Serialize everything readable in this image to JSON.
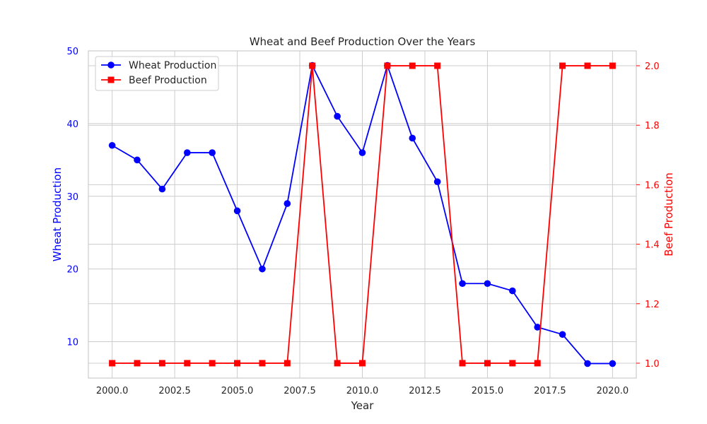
{
  "chart_data": {
    "type": "line",
    "title": "Wheat and Beef Production Over the Years",
    "xlabel": "Year",
    "x": [
      2000,
      2001,
      2002,
      2003,
      2004,
      2005,
      2006,
      2007,
      2008,
      2009,
      2010,
      2011,
      2012,
      2013,
      2014,
      2015,
      2016,
      2017,
      2018,
      2019,
      2020
    ],
    "x_ticks": [
      "2000.0",
      "2002.5",
      "2005.0",
      "2007.5",
      "2010.0",
      "2012.5",
      "2015.0",
      "2017.5",
      "2020.0"
    ],
    "xlim": [
      1999.05,
      2020.95
    ],
    "grid": true,
    "legend_position": "upper-left",
    "series": [
      {
        "name": "Wheat Production",
        "axis": "left",
        "color": "#0000ff",
        "marker": "circle",
        "values": [
          37,
          35,
          31,
          36,
          36,
          28,
          20,
          29,
          48,
          41,
          36,
          48,
          38,
          32,
          18,
          18,
          17,
          12,
          11,
          7,
          7
        ]
      },
      {
        "name": "Beef Production",
        "axis": "right",
        "color": "#ff0000",
        "marker": "square",
        "values": [
          1,
          1,
          1,
          1,
          1,
          1,
          1,
          1,
          2,
          1,
          1,
          2,
          2,
          2,
          1,
          1,
          1,
          1,
          2,
          2,
          2
        ]
      }
    ],
    "y_left": {
      "label": "Wheat Production",
      "color": "#0000ff",
      "ylim": [
        5.0,
        50.0
      ],
      "ticks": [
        "10",
        "20",
        "30",
        "40",
        "50"
      ]
    },
    "y_right": {
      "label": "Beef Production",
      "color": "#ff0000",
      "ylim": [
        0.95,
        2.05
      ],
      "ticks": [
        "1.0",
        "1.2",
        "1.4",
        "1.6",
        "1.8",
        "2.0"
      ]
    }
  }
}
